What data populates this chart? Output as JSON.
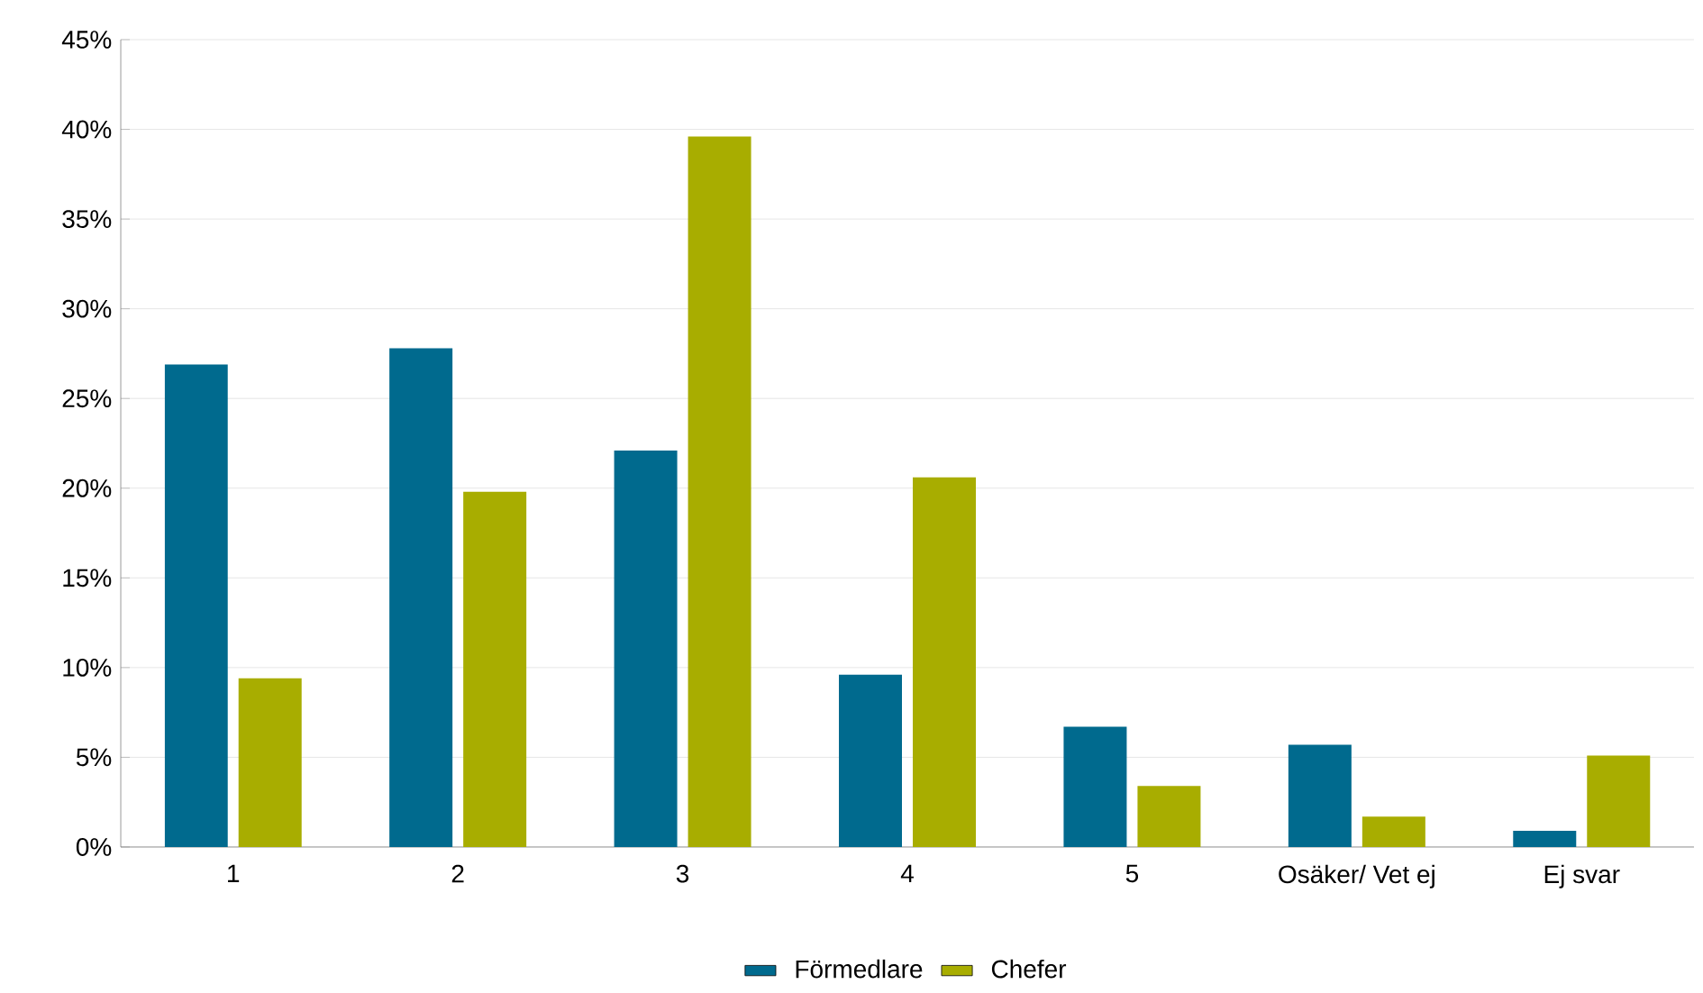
{
  "chart_data": {
    "type": "bar",
    "categories": [
      "1",
      "2",
      "3",
      "4",
      "5",
      "Osäker/ Vet ej",
      "Ej svar"
    ],
    "series": [
      {
        "name": "Förmedlare",
        "color": "#006a8e",
        "values": [
          26.9,
          27.8,
          22.1,
          9.6,
          6.7,
          5.7,
          0.9
        ]
      },
      {
        "name": "Chefer",
        "color": "#a8ad00",
        "values": [
          9.4,
          19.8,
          39.6,
          20.6,
          3.4,
          1.7,
          5.1
        ]
      }
    ],
    "ylim": [
      0,
      45
    ],
    "yticks": [
      {
        "value": 0,
        "label": "0%"
      },
      {
        "value": 5,
        "label": "5%"
      },
      {
        "value": 10,
        "label": "10%"
      },
      {
        "value": 15,
        "label": "15%"
      },
      {
        "value": 20,
        "label": "20%"
      },
      {
        "value": 25,
        "label": "25%"
      },
      {
        "value": 30,
        "label": "30%"
      },
      {
        "value": 35,
        "label": "35%"
      },
      {
        "value": 40,
        "label": "40%"
      },
      {
        "value": 45,
        "label": "45%"
      }
    ],
    "grid": "y",
    "legend": "bottom"
  }
}
